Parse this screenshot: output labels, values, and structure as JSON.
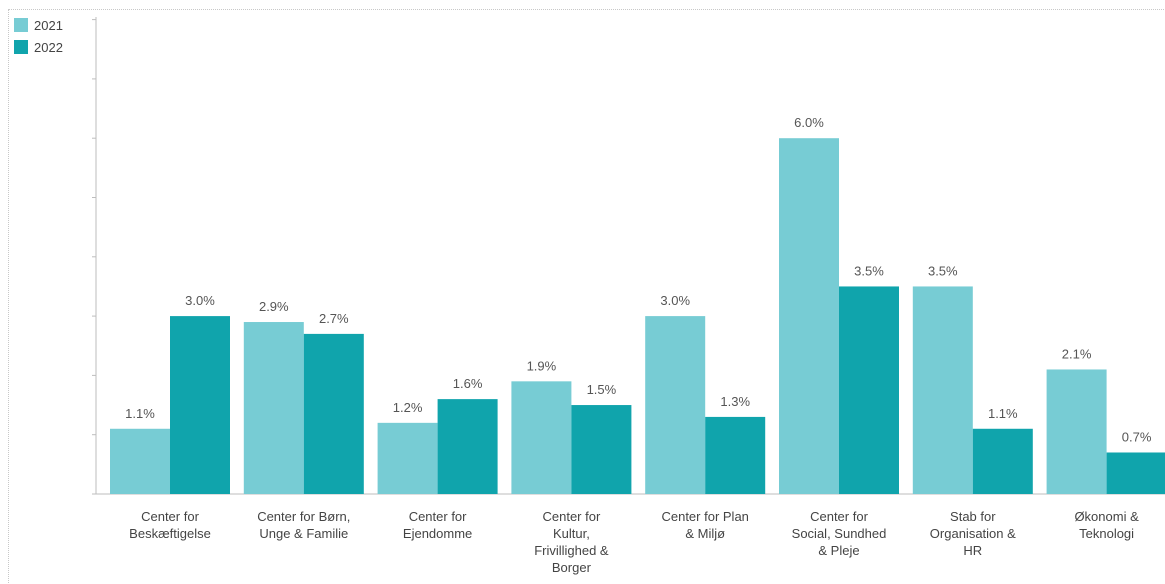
{
  "chart_data": {
    "type": "bar",
    "categories": [
      [
        "Center for",
        "Beskæftigelse"
      ],
      [
        "Center for Børn,",
        "Unge & Familie"
      ],
      [
        "Center for",
        "Ejendomme"
      ],
      [
        "Center for",
        "Kultur,",
        "Frivillighed &",
        "Borger"
      ],
      [
        "Center for Plan",
        "& Miljø"
      ],
      [
        "Center for",
        "Social, Sundhed",
        "& Pleje"
      ],
      [
        "Stab for",
        "Organisation &",
        "HR"
      ],
      [
        "Økonomi &",
        "Teknologi"
      ]
    ],
    "series": [
      {
        "name": "2021",
        "color": "#77ccd4",
        "values": [
          1.1,
          2.9,
          1.2,
          1.9,
          3.0,
          6.0,
          3.5,
          2.1
        ],
        "labels": [
          "1.1%",
          "2.9%",
          "1.2%",
          "1.9%",
          "3.0%",
          "6.0%",
          "3.5%",
          "2.1%"
        ]
      },
      {
        "name": "2022",
        "color": "#10a4ac",
        "values": [
          3.0,
          2.7,
          1.6,
          1.5,
          1.3,
          3.5,
          1.1,
          0.7
        ],
        "labels": [
          "3.0%",
          "2.7%",
          "1.6%",
          "1.5%",
          "1.3%",
          "3.5%",
          "1.1%",
          "0.7%"
        ]
      }
    ],
    "ylim": [
      0,
      8
    ],
    "legend_position": "top-left",
    "grid": false
  }
}
